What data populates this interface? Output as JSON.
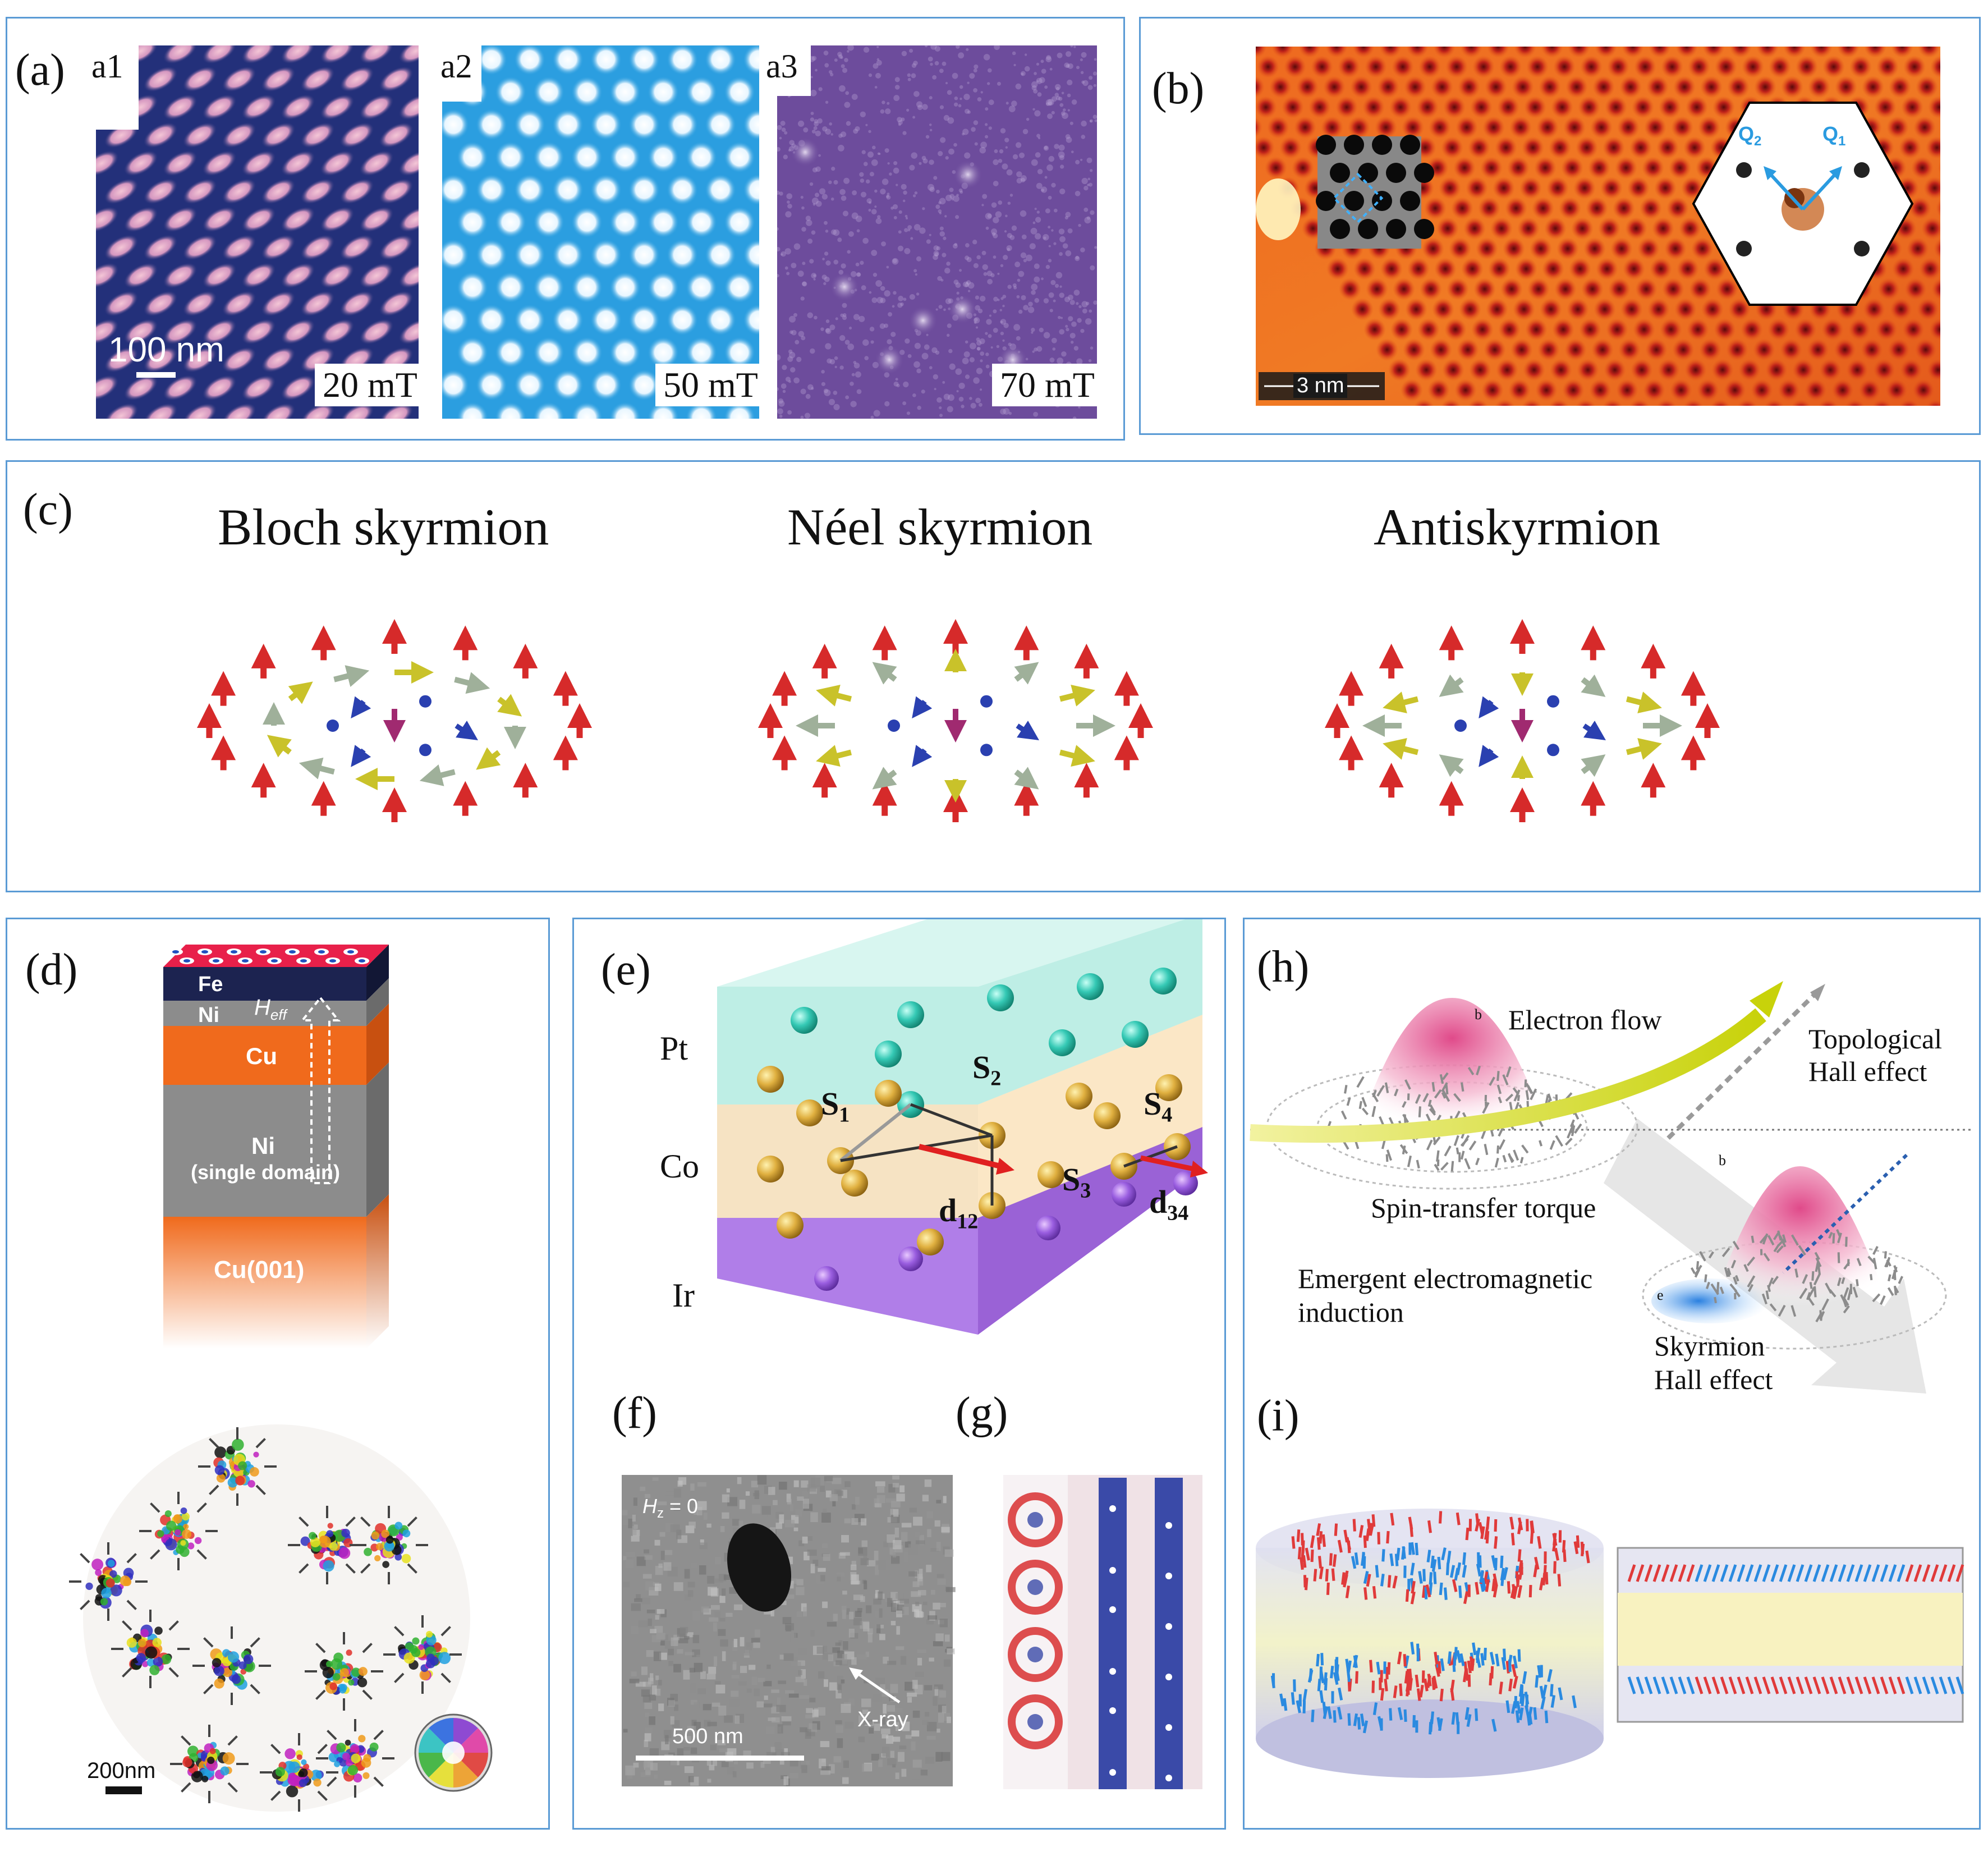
{
  "panel_a": {
    "label": "(a)",
    "subpanels": [
      {
        "label": "a1",
        "field": "20 mT",
        "color": "#23307a"
      },
      {
        "label": "a2",
        "field": "50 mT",
        "color": "#2b9ee0"
      },
      {
        "label": "a3",
        "field": "70 mT",
        "color": "#6d4c9c"
      }
    ],
    "scalebar": "100 nm"
  },
  "panel_b": {
    "label": "(b)",
    "scalebar": "3 nm",
    "q1": "Q",
    "q1_sub": "1",
    "q2": "Q",
    "q2_sub": "2"
  },
  "panel_c": {
    "label": "(c)",
    "titles": [
      "Bloch skyrmion",
      "Néel skyrmion",
      "Antiskyrmion"
    ]
  },
  "panel_d": {
    "label": "(d)",
    "layers": {
      "fe": "Fe",
      "ni_top": "Ni",
      "heff": "H",
      "heff_sub": "eff",
      "cu": "Cu",
      "ni": "Ni",
      "ni_note": "(single domain)",
      "cu001": "Cu(001)"
    },
    "scalebar": "200nm"
  },
  "panel_e": {
    "label": "(e)",
    "layers": [
      "Pt",
      "Co",
      "Ir"
    ],
    "spins": [
      {
        "main": "S",
        "sub": "1"
      },
      {
        "main": "S",
        "sub": "2"
      },
      {
        "main": "S",
        "sub": "3"
      },
      {
        "main": "S",
        "sub": "4"
      }
    ],
    "dmi": [
      {
        "main": "d",
        "sub": "12"
      },
      {
        "main": "d",
        "sub": "34"
      }
    ]
  },
  "panel_f": {
    "label": "(f)",
    "field": "H",
    "field_sub": "z",
    "field_value": " = 0",
    "scalebar": "500 nm",
    "xray": "X-ray"
  },
  "panel_g": {
    "label": "(g)"
  },
  "panel_h": {
    "label": "(h)",
    "electron_flow": "Electron flow",
    "topological": "Topological",
    "hall": "Hall effect",
    "stt": "Spin-transfer torque",
    "emergent1": "Emergent electromagnetic",
    "emergent2": "induction",
    "skyrmion": "Skyrmion",
    "skyrmion_hall": "Hall effect",
    "b1": "b",
    "b2": "b",
    "e": "e"
  },
  "panel_i": {
    "label": "(i)"
  }
}
